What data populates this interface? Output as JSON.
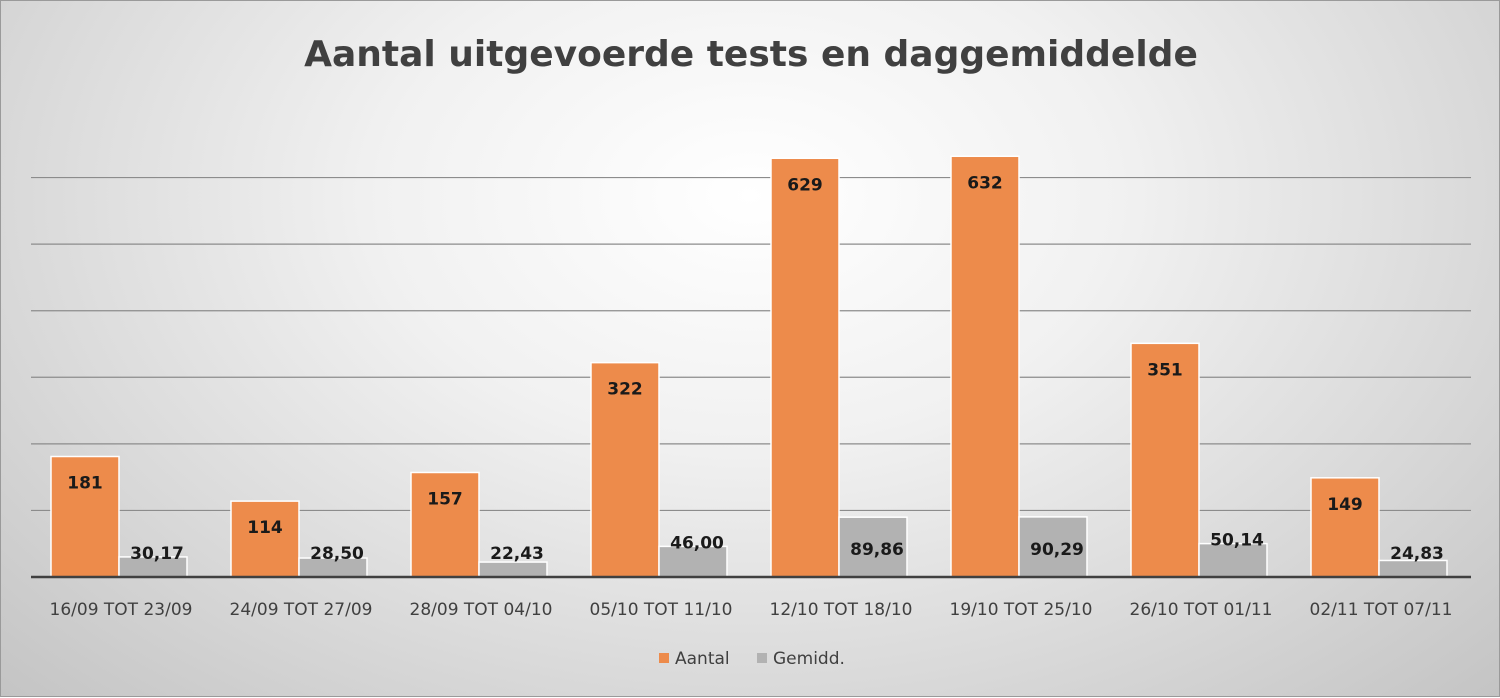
{
  "chart_data": {
    "type": "bar",
    "title": "Aantal uitgevoerde tests en daggemiddelde",
    "categories": [
      "16/09 TOT 23/09",
      "24/09 TOT 27/09",
      "28/09 TOT 04/10",
      "05/10 TOT 11/10",
      "12/10 TOT 18/10",
      "19/10 TOT 25/10",
      "26/10 TOT 01/11",
      "02/11 TOT 07/11"
    ],
    "series": [
      {
        "name": "Aantal",
        "color": "#ed8b4b",
        "values": [
          181,
          114,
          157,
          322,
          629,
          632,
          351,
          149
        ],
        "labels": [
          "181",
          "114",
          "157",
          "322",
          "629",
          "632",
          "351",
          "149"
        ]
      },
      {
        "name": "Gemidd.",
        "color": "#b2b2b2",
        "values": [
          30.17,
          28.5,
          22.43,
          46.0,
          89.86,
          90.29,
          50.14,
          24.83
        ],
        "labels": [
          "30,17",
          "28,50",
          "22,43",
          "46,00",
          "89,86",
          "90,29",
          "50,14",
          "24,83"
        ]
      }
    ],
    "ylim": [
      0,
      700
    ],
    "gridlines": [
      100,
      200,
      300,
      400,
      500,
      600
    ],
    "grid": true,
    "legend_position": "bottom"
  }
}
